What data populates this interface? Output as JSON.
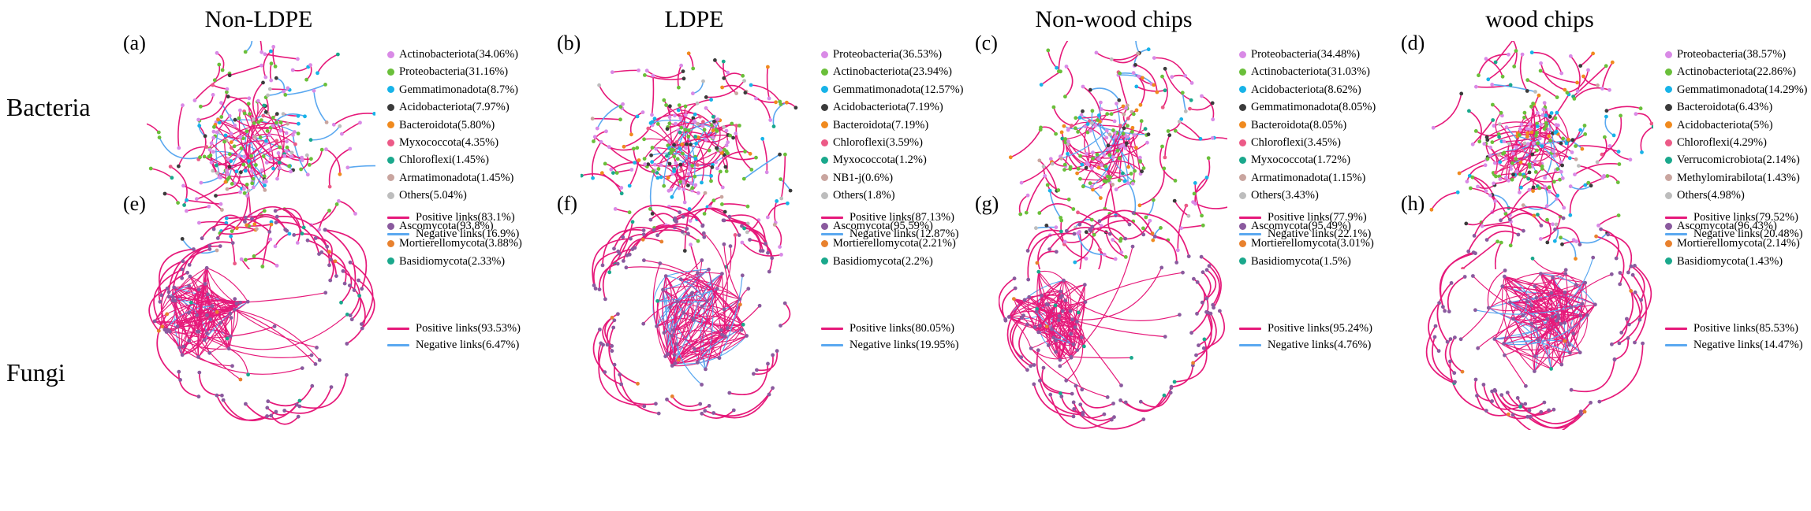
{
  "column_titles": [
    "Non-LDPE",
    "LDPE",
    "Non-wood chips",
    "wood chips"
  ],
  "row_titles": [
    "Bacteria",
    "Fungi"
  ],
  "link_colors": {
    "positive": "#e6197a",
    "negative": "#5aa8f0"
  },
  "panels": [
    {
      "label": "(a)",
      "kingdom": "bacteria",
      "seed": 11,
      "dense": false,
      "taxa": [
        {
          "name": "Actinobacteriota(34.06%)",
          "color": "#d98ae6"
        },
        {
          "name": "Proteobacteria(31.16%)",
          "color": "#6abf3a"
        },
        {
          "name": "Gemmatimonadota(8.7%)",
          "color": "#17b3e8"
        },
        {
          "name": "Acidobacteriota(7.97%)",
          "color": "#3b3b3b"
        },
        {
          "name": "Bacteroidota(5.80%)",
          "color": "#f08a1e"
        },
        {
          "name": "Myxococcota(4.35%)",
          "color": "#ec5a87"
        },
        {
          "name": "Chloroflexi(1.45%)",
          "color": "#1aa88c"
        },
        {
          "name": "Armatimonadota(1.45%)",
          "color": "#c9a59f"
        },
        {
          "name": "Others(5.04%)",
          "color": "#bdbdbd"
        }
      ],
      "positive": "Positive links(83.1%)",
      "negative": "Negative links(16.9%)",
      "positive_share": 0.831
    },
    {
      "label": "(b)",
      "kingdom": "bacteria",
      "seed": 23,
      "dense": false,
      "taxa": [
        {
          "name": "Proteobacteria(36.53%)",
          "color": "#d98ae6"
        },
        {
          "name": "Actinobacteriota(23.94%)",
          "color": "#6abf3a"
        },
        {
          "name": "Gemmatimonadota(12.57%)",
          "color": "#17b3e8"
        },
        {
          "name": "Acidobacteriota(7.19%)",
          "color": "#3b3b3b"
        },
        {
          "name": "Bacteroidota(7.19%)",
          "color": "#f08a1e"
        },
        {
          "name": "Chloroflexi(3.59%)",
          "color": "#ec5a87"
        },
        {
          "name": "Myxococcota(1.2%)",
          "color": "#1aa88c"
        },
        {
          "name": "NB1-j(0.6%)",
          "color": "#c9a59f"
        },
        {
          "name": "Others(1.8%)",
          "color": "#bdbdbd"
        }
      ],
      "positive": "Positive links(87.13%)",
      "negative": "Negative links(12.87%)",
      "positive_share": 0.8713
    },
    {
      "label": "(c)",
      "kingdom": "bacteria",
      "seed": 37,
      "dense": false,
      "taxa": [
        {
          "name": "Proteobacteria(34.48%)",
          "color": "#d98ae6"
        },
        {
          "name": "Actinobacteriota(31.03%)",
          "color": "#6abf3a"
        },
        {
          "name": "Acidobacteriota(8.62%)",
          "color": "#17b3e8"
        },
        {
          "name": "Gemmatimonadota(8.05%)",
          "color": "#3b3b3b"
        },
        {
          "name": "Bacteroidota(8.05%)",
          "color": "#f08a1e"
        },
        {
          "name": "Chloroflexi(3.45%)",
          "color": "#ec5a87"
        },
        {
          "name": "Myxococcota(1.72%)",
          "color": "#1aa88c"
        },
        {
          "name": "Armatimonadota(1.15%)",
          "color": "#c9a59f"
        },
        {
          "name": "Others(3.43%)",
          "color": "#bdbdbd"
        }
      ],
      "positive": "Positive links(77.9%)",
      "negative": "Negative links(22.1%)",
      "positive_share": 0.779
    },
    {
      "label": "(d)",
      "kingdom": "bacteria",
      "seed": 53,
      "dense": false,
      "taxa": [
        {
          "name": "Proteobacteria(38.57%)",
          "color": "#d98ae6"
        },
        {
          "name": "Actinobacteriota(22.86%)",
          "color": "#6abf3a"
        },
        {
          "name": "Gemmatimonadota(14.29%)",
          "color": "#17b3e8"
        },
        {
          "name": "Bacteroidota(6.43%)",
          "color": "#3b3b3b"
        },
        {
          "name": "Acidobacteriota(5%)",
          "color": "#f08a1e"
        },
        {
          "name": "Chloroflexi(4.29%)",
          "color": "#ec5a87"
        },
        {
          "name": "Verrucomicrobiota(2.14%)",
          "color": "#1aa88c"
        },
        {
          "name": "Methylomirabilota(1.43%)",
          "color": "#c9a59f"
        },
        {
          "name": "Others(4.98%)",
          "color": "#bdbdbd"
        }
      ],
      "positive": "Positive links(79.52%)",
      "negative": "Negative links(20.48%)",
      "positive_share": 0.7952
    },
    {
      "label": "(e)",
      "kingdom": "fungi",
      "seed": 71,
      "dense": true,
      "cluster": "left",
      "taxa": [
        {
          "name": "Ascomycota(93.8%)",
          "color": "#8a5a9e"
        },
        {
          "name": "Mortierellomycota(3.88%)",
          "color": "#e8812e"
        },
        {
          "name": "Basidiomycota(2.33%)",
          "color": "#1aa88c"
        }
      ],
      "positive": "Positive links(93.53%)",
      "negative": "Negative links(6.47%)",
      "positive_share": 0.9353
    },
    {
      "label": "(f)",
      "kingdom": "fungi",
      "seed": 89,
      "dense": true,
      "cluster": "center",
      "taxa": [
        {
          "name": "Ascomycota(95.59%)",
          "color": "#8a5a9e"
        },
        {
          "name": "Mortierellomycota(2.21%)",
          "color": "#e8812e"
        },
        {
          "name": "Basidiomycota(2.2%)",
          "color": "#1aa88c"
        }
      ],
      "positive": "Positive links(80.05%)",
      "negative": "Negative links(19.95%)",
      "positive_share": 0.8005
    },
    {
      "label": "(g)",
      "kingdom": "fungi",
      "seed": 97,
      "dense": true,
      "cluster": "left",
      "taxa": [
        {
          "name": "Ascomycota(95.49%)",
          "color": "#8a5a9e"
        },
        {
          "name": "Mortierellomycota(3.01%)",
          "color": "#e8812e"
        },
        {
          "name": "Basidiomycota(1.5%)",
          "color": "#1aa88c"
        }
      ],
      "positive": "Positive links(95.24%)",
      "negative": "Negative links(4.76%)",
      "positive_share": 0.9524
    },
    {
      "label": "(h)",
      "kingdom": "fungi",
      "seed": 113,
      "dense": true,
      "cluster": "center",
      "taxa": [
        {
          "name": "Ascomycota(96.43%)",
          "color": "#8a5a9e"
        },
        {
          "name": "Mortierellomycota(2.14%)",
          "color": "#e8812e"
        },
        {
          "name": "Basidiomycota(1.43%)",
          "color": "#1aa88c"
        }
      ],
      "positive": "Positive links(85.53%)",
      "negative": "Negative links(14.47%)",
      "positive_share": 0.8553
    }
  ]
}
